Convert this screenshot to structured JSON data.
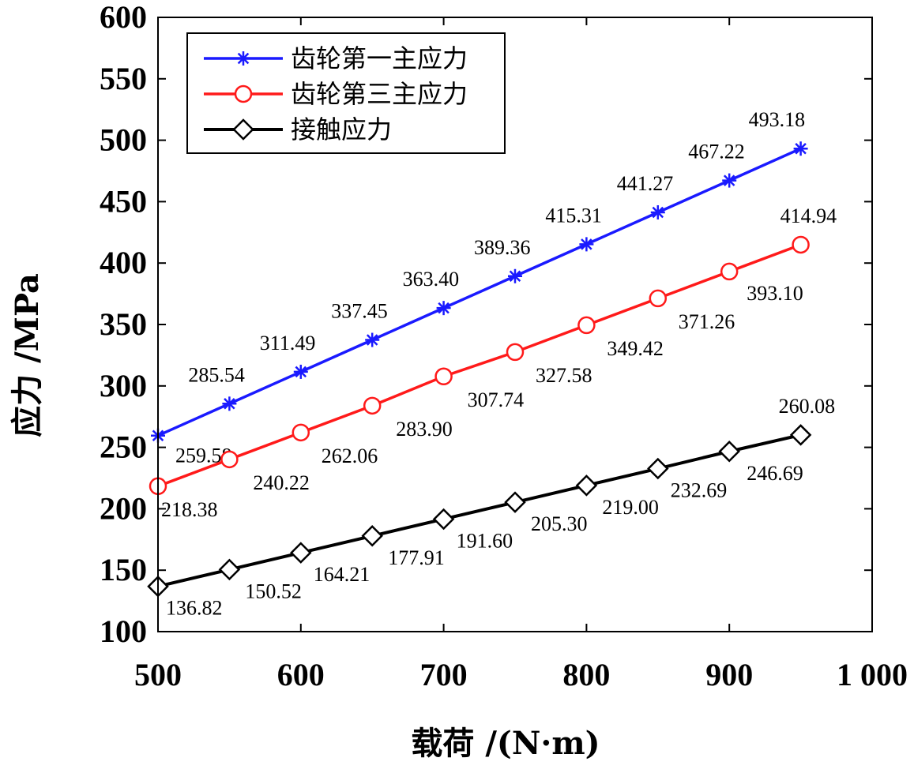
{
  "chart_data": {
    "type": "line",
    "title": "",
    "xlabel": "载荷 /(N·m)",
    "ylabel": "应力 /MPa",
    "xlim": [
      500,
      1000
    ],
    "ylim": [
      100,
      600
    ],
    "xticks": [
      500,
      600,
      700,
      800,
      900,
      1000
    ],
    "xtick_labels": [
      "500",
      "600",
      "700",
      "800",
      "900",
      "1 000"
    ],
    "yticks": [
      100,
      150,
      200,
      250,
      300,
      350,
      400,
      450,
      500,
      550,
      600
    ],
    "ytick_labels": [
      "100",
      "150",
      "200",
      "250",
      "300",
      "350",
      "400",
      "450",
      "500",
      "550",
      "600"
    ],
    "grid": false,
    "legend_position": "top-left",
    "x": [
      500,
      550,
      600,
      650,
      700,
      750,
      800,
      850,
      900,
      950
    ],
    "series": [
      {
        "name": "齿轮第一主应力",
        "color": "#1a1aff",
        "marker": "asterisk",
        "values": [
          259.58,
          285.54,
          311.49,
          337.45,
          363.4,
          389.36,
          415.31,
          441.27,
          467.22,
          493.18
        ],
        "labels": [
          "259.58",
          "285.54",
          "311.49",
          "337.45",
          "363.40",
          "389.36",
          "415.31",
          "441.27",
          "467.22",
          "493.18"
        ]
      },
      {
        "name": "齿轮第三主应力",
        "color": "#ff1a1a",
        "marker": "circle",
        "values": [
          218.38,
          240.22,
          262.06,
          283.9,
          307.74,
          327.58,
          349.42,
          371.26,
          393.1,
          414.94
        ],
        "labels": [
          "218.38",
          "240.22",
          "262.06",
          "283.90",
          "307.74",
          "327.58",
          "349.42",
          "371.26",
          "393.10",
          "414.94"
        ]
      },
      {
        "name": "接触应力",
        "color": "#000000",
        "marker": "diamond",
        "values": [
          136.82,
          150.52,
          164.21,
          177.91,
          191.6,
          205.3,
          219.0,
          232.69,
          246.69,
          260.08
        ],
        "labels": [
          "136.82",
          "150.52",
          "164.21",
          "177.91",
          "191.60",
          "205.30",
          "219.00",
          "232.69",
          "246.69",
          "260.08"
        ]
      }
    ]
  }
}
